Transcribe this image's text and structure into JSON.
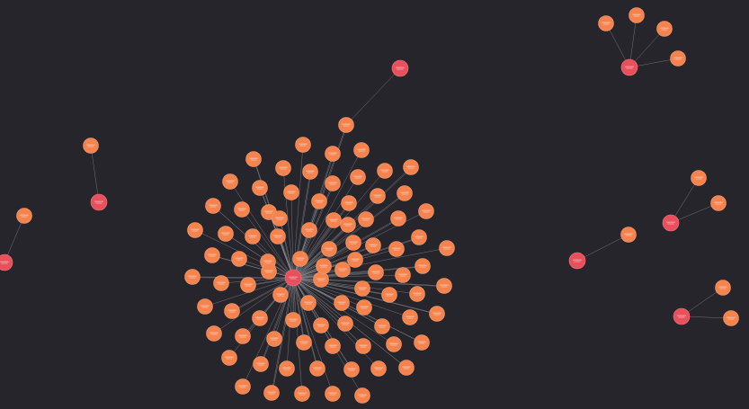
{
  "colors": {
    "background": "#25252b",
    "hub_node": "#e8505b",
    "leaf_node": "#f4834e",
    "edge": "#8e8e96"
  },
  "graph": {
    "node_type_hub": "hub",
    "node_type_leaf": "leaf"
  }
}
